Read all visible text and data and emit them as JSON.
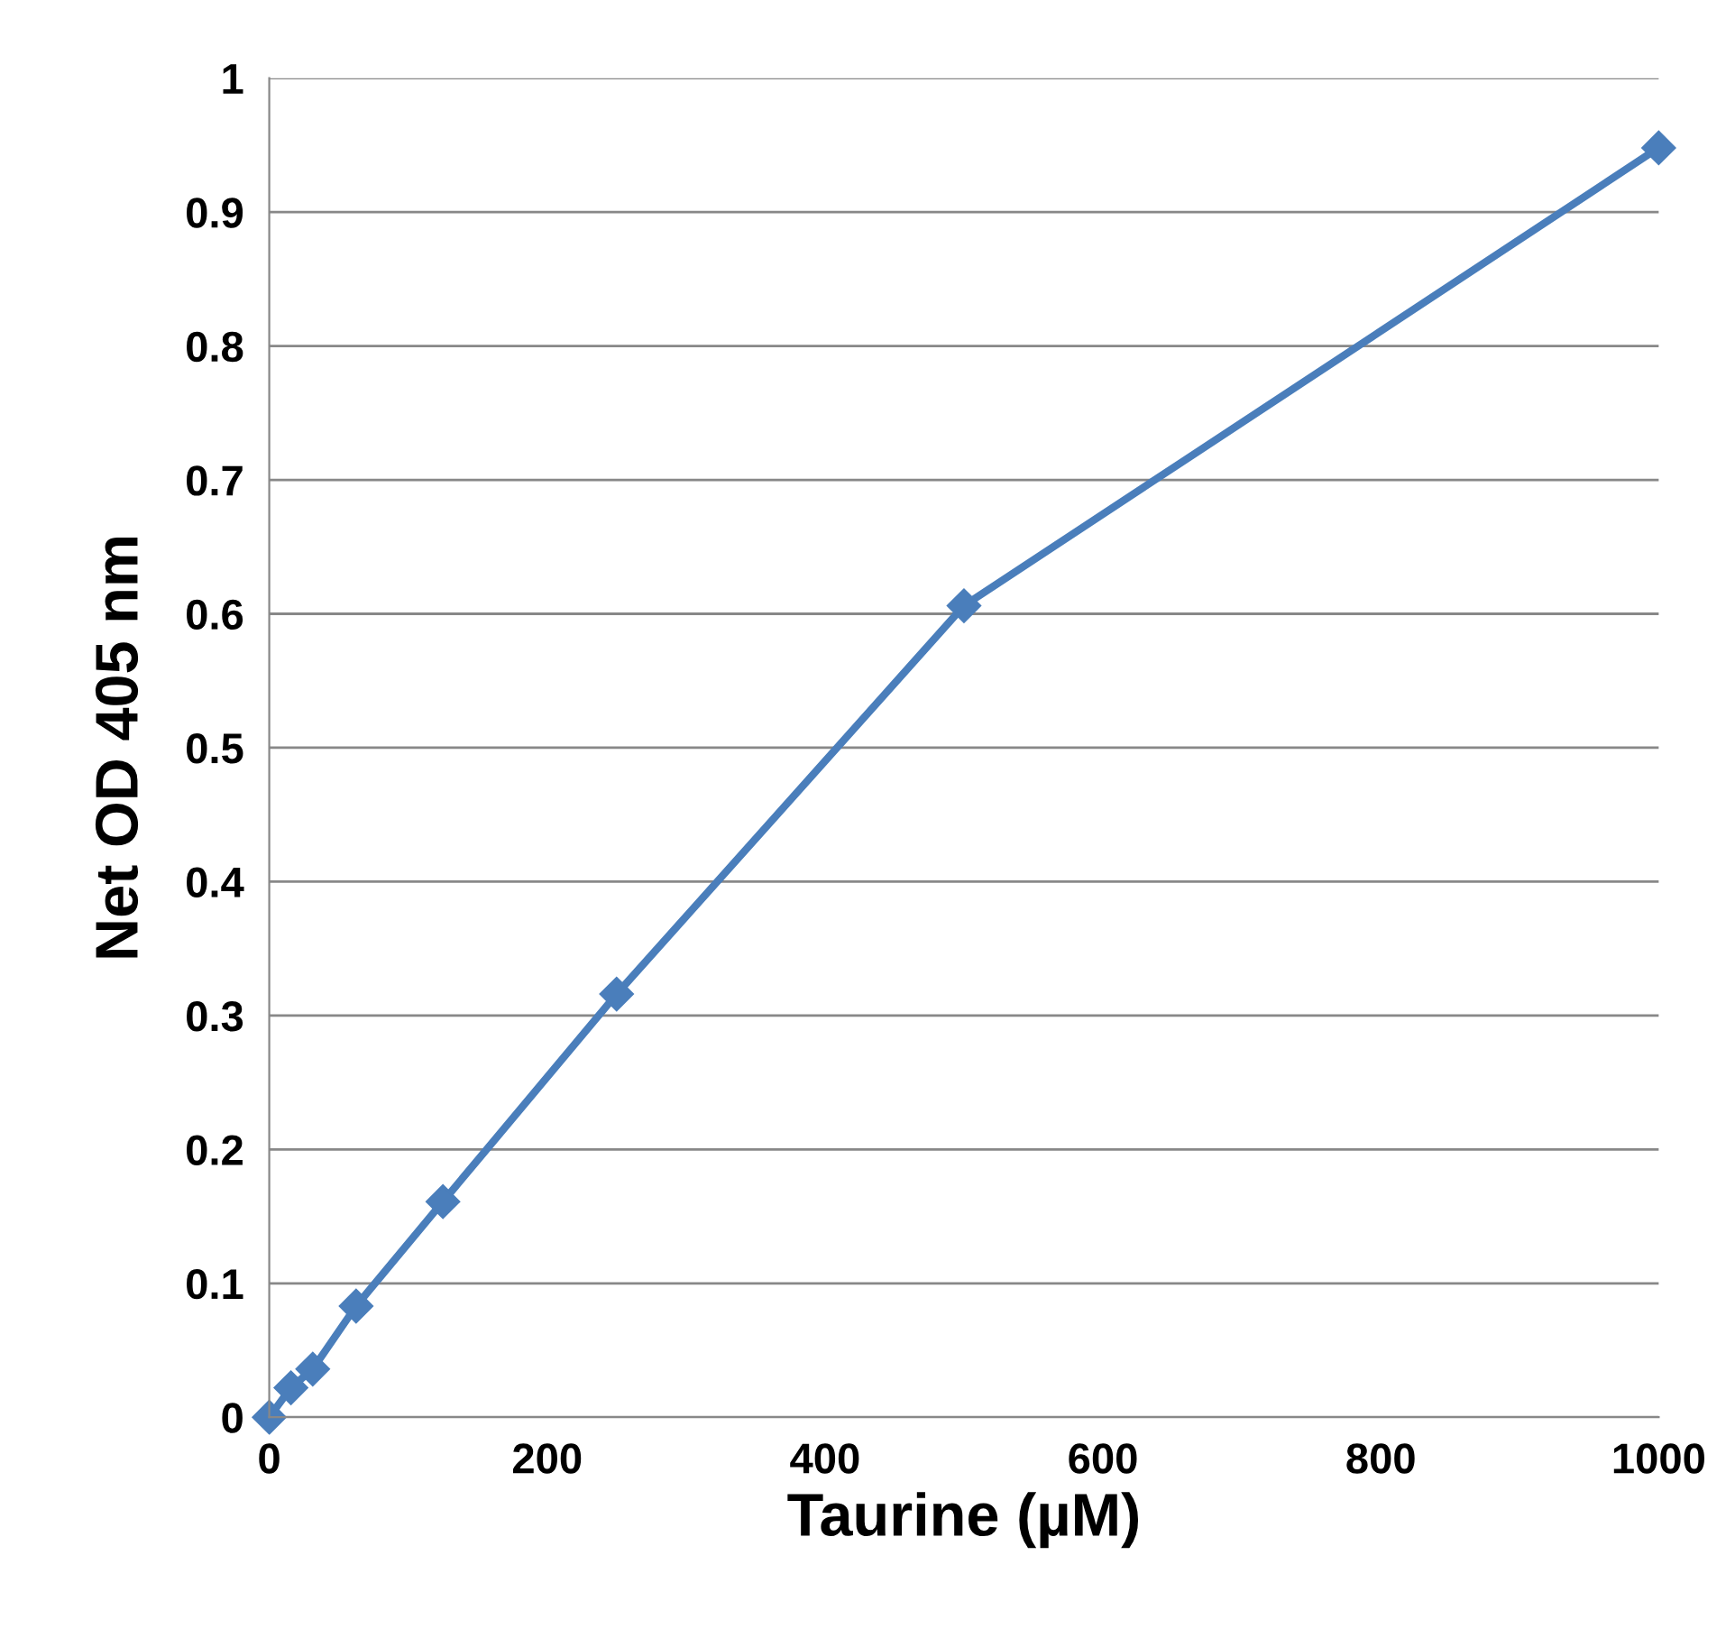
{
  "chart_data": {
    "type": "line",
    "xlabel": "Taurine (µM)",
    "ylabel": "Net OD 405 nm",
    "x": [
      0,
      15.6,
      31.3,
      62.5,
      125,
      250,
      500,
      1000
    ],
    "series": [
      {
        "color": "#4a7ebb",
        "values": [
          0,
          0.022,
          0.036,
          0.083,
          0.161,
          0.316,
          0.606,
          0.948
        ]
      }
    ],
    "xlim": [
      0,
      1000
    ],
    "ylim": [
      0,
      1
    ],
    "xticks": [
      0,
      200,
      400,
      600,
      800,
      1000
    ],
    "yticks": [
      0,
      0.1,
      0.2,
      0.3,
      0.4,
      0.5,
      0.6,
      0.7,
      0.8,
      0.9,
      1
    ],
    "grid": "y",
    "marker": "diamond",
    "line_style": "solid"
  }
}
